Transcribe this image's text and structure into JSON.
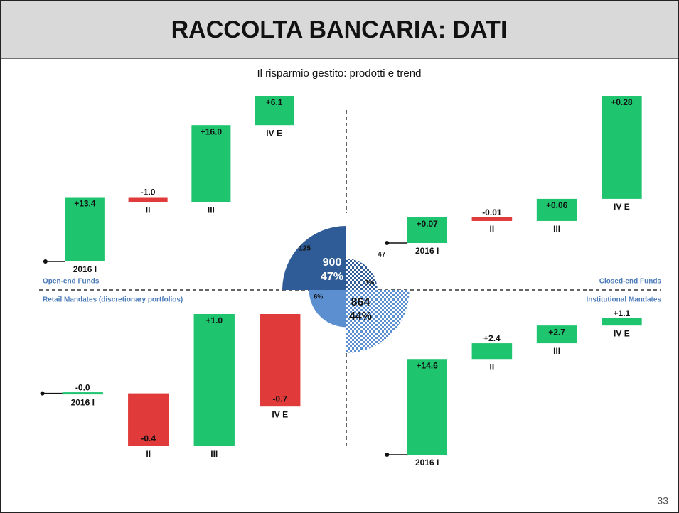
{
  "slide": {
    "title": "RACCOLTA BANCARIA: DATI",
    "subtitle": "Il risparmio gestito: prodotti e trend",
    "page": "33"
  },
  "chart_data": [
    {
      "type": "pie",
      "categories": [
        "Open-end Funds",
        "Closed-end Funds",
        "Retail Mandates (discretionary portfolios)",
        "Institutional Mandates"
      ],
      "values": [
        900,
        47,
        125,
        864
      ],
      "shares": [
        47,
        3,
        6,
        44
      ],
      "share_labels": [
        "47%",
        "3%",
        "6%",
        "44%"
      ],
      "colors": [
        "#2f5c96",
        "#2f5c96",
        "#5b8fd0",
        "#5b8fd0"
      ],
      "patterned": [
        false,
        true,
        false,
        true
      ]
    },
    {
      "type": "waterfall",
      "categories": [
        "2016 I",
        "II",
        "III",
        "IV E"
      ],
      "values": [
        13.4,
        -1.0,
        16.0,
        6.1
      ],
      "value_labels": [
        "+13.4",
        "-1.0",
        "+16.0",
        "+6.1"
      ],
      "up_color": "#1fc46f",
      "down_color": "#e03a3a"
    },
    {
      "type": "waterfall",
      "categories": [
        "2016 I",
        "II",
        "III",
        "IV E"
      ],
      "values": [
        0.07,
        -0.01,
        0.06,
        0.28
      ],
      "value_labels": [
        "+0.07",
        "-0.01",
        "+0.06",
        "+0.28"
      ],
      "up_color": "#1fc46f",
      "down_color": "#e03a3a"
    },
    {
      "type": "waterfall",
      "categories": [
        "2016 I",
        "II",
        "III",
        "IV E"
      ],
      "values": [
        0,
        -0.4,
        1.0,
        -0.7
      ],
      "value_labels": [
        "-0.0",
        "-0.4",
        "+1.0",
        "-0.7"
      ],
      "up_color": "#1fc46f",
      "down_color": "#e03a3a"
    },
    {
      "type": "waterfall",
      "categories": [
        "2016 I",
        "II",
        "III",
        "IV E"
      ],
      "values": [
        14.6,
        2.4,
        2.7,
        1.1
      ],
      "value_labels": [
        "+14.6",
        "+2.4",
        "+2.7",
        "+1.1"
      ],
      "up_color": "#1fc46f",
      "down_color": "#e03a3a"
    }
  ]
}
